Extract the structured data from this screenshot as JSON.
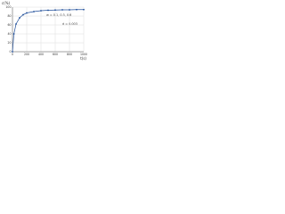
{
  "chart_data": {
    "type": "line",
    "y_label": "c(%)",
    "x_label": "t(s)",
    "annotations": [
      "w = 0.1, 0.3, 0.6",
      "d = 0.003"
    ],
    "x": [
      0,
      20,
      50,
      100,
      150,
      200,
      300,
      400,
      500,
      600,
      700,
      800,
      900,
      1000
    ],
    "series": [
      {
        "name": "c",
        "color": "#1f4e9a",
        "values": [
          0,
          40,
          62,
          76,
          83,
          87,
          90,
          92,
          93,
          93.5,
          94,
          94,
          94.5,
          94.5
        ]
      }
    ],
    "xlim": [
      0,
      1000
    ],
    "xticks": [
      0,
      200,
      400,
      600,
      800,
      1000
    ],
    "ylim": [
      0,
      100
    ],
    "yticks": [
      0,
      20,
      40,
      60,
      80,
      100
    ],
    "grid": true
  }
}
